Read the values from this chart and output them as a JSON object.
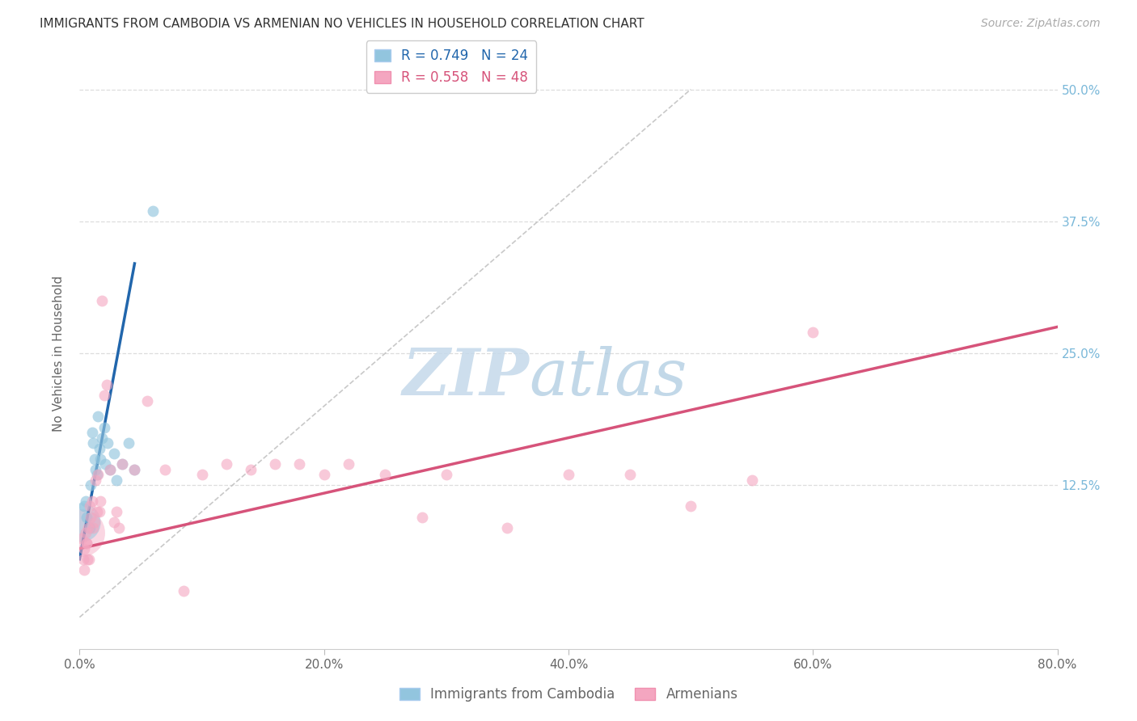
{
  "title": "IMMIGRANTS FROM CAMBODIA VS ARMENIAN NO VEHICLES IN HOUSEHOLD CORRELATION CHART",
  "source": "Source: ZipAtlas.com",
  "ylabel": "No Vehicles in Household",
  "x_tick_vals": [
    0.0,
    20.0,
    40.0,
    60.0,
    80.0
  ],
  "y_tick_labels": [
    "12.5%",
    "25.0%",
    "37.5%",
    "50.0%"
  ],
  "y_tick_vals": [
    12.5,
    25.0,
    37.5,
    50.0
  ],
  "xlim": [
    0.0,
    80.0
  ],
  "ylim": [
    -3.0,
    53.0
  ],
  "legend_label_blue": "Immigrants from Cambodia",
  "legend_label_pink": "Armenians",
  "R_blue": 0.749,
  "N_blue": 24,
  "R_pink": 0.558,
  "N_pink": 48,
  "blue_color": "#92c5de",
  "pink_color": "#f4a6c0",
  "blue_line_color": "#2166ac",
  "pink_line_color": "#d6537a",
  "blue_scatter_x": [
    0.4,
    0.6,
    0.8,
    1.0,
    1.1,
    1.2,
    1.3,
    1.4,
    1.5,
    1.6,
    1.8,
    2.0,
    2.1,
    2.3,
    2.5,
    2.8,
    3.0,
    3.5,
    4.0,
    4.5,
    0.5,
    0.9,
    1.7,
    6.0
  ],
  "blue_scatter_y": [
    10.5,
    9.5,
    8.5,
    17.5,
    16.5,
    15.0,
    14.0,
    13.5,
    19.0,
    16.0,
    17.0,
    18.0,
    14.5,
    16.5,
    14.0,
    15.5,
    13.0,
    14.5,
    16.5,
    14.0,
    11.0,
    12.5,
    15.0,
    38.5
  ],
  "blue_scatter_sizes": [
    100,
    100,
    100,
    100,
    100,
    100,
    100,
    100,
    100,
    100,
    100,
    100,
    100,
    100,
    100,
    100,
    100,
    100,
    100,
    100,
    100,
    100,
    100,
    100
  ],
  "pink_scatter_x": [
    0.2,
    0.3,
    0.4,
    0.5,
    0.6,
    0.7,
    0.8,
    0.9,
    1.0,
    1.1,
    1.2,
    1.3,
    1.5,
    1.6,
    1.7,
    1.8,
    2.0,
    2.2,
    2.5,
    3.0,
    3.5,
    4.5,
    5.5,
    7.0,
    8.5,
    10.0,
    12.0,
    14.0,
    16.0,
    18.0,
    20.0,
    22.0,
    25.0,
    28.0,
    30.0,
    35.0,
    40.0,
    45.0,
    50.0,
    55.0,
    60.0,
    0.35,
    0.55,
    0.65,
    0.75,
    1.4,
    2.8,
    3.2
  ],
  "pink_scatter_y": [
    7.5,
    5.5,
    4.5,
    8.0,
    7.0,
    8.5,
    10.5,
    9.5,
    11.0,
    8.5,
    9.0,
    13.0,
    13.5,
    10.0,
    11.0,
    30.0,
    21.0,
    22.0,
    14.0,
    10.0,
    14.5,
    14.0,
    20.5,
    14.0,
    2.5,
    13.5,
    14.5,
    14.0,
    14.5,
    14.5,
    13.5,
    14.5,
    13.5,
    9.5,
    13.5,
    8.5,
    13.5,
    13.5,
    10.5,
    13.0,
    27.0,
    6.5,
    7.0,
    5.5,
    5.5,
    10.0,
    9.0,
    8.5
  ],
  "pink_scatter_sizes": [
    100,
    100,
    100,
    100,
    100,
    100,
    100,
    100,
    100,
    100,
    100,
    100,
    100,
    100,
    100,
    100,
    100,
    100,
    100,
    100,
    100,
    100,
    100,
    100,
    100,
    100,
    100,
    100,
    100,
    100,
    100,
    100,
    100,
    100,
    100,
    100,
    100,
    100,
    100,
    100,
    100,
    100,
    100,
    100,
    100,
    100,
    100,
    100
  ],
  "large_bubble_blue_x": 0.1,
  "large_bubble_blue_y": 9.0,
  "large_bubble_blue_size": 1200,
  "large_bubble_pink_x": 0.1,
  "large_bubble_pink_y": 8.0,
  "large_bubble_pink_size": 1800,
  "blue_line_x0": 0.0,
  "blue_line_y0": 5.5,
  "blue_line_x1": 4.5,
  "blue_line_y1": 33.5,
  "pink_line_x0": 0.0,
  "pink_line_y0": 6.5,
  "pink_line_x1": 80.0,
  "pink_line_y1": 27.5,
  "diag_x0": 0.0,
  "diag_y0": 0.0,
  "diag_x1": 50.0,
  "diag_y1": 50.0,
  "background_color": "#ffffff",
  "grid_color": "#dddddd"
}
